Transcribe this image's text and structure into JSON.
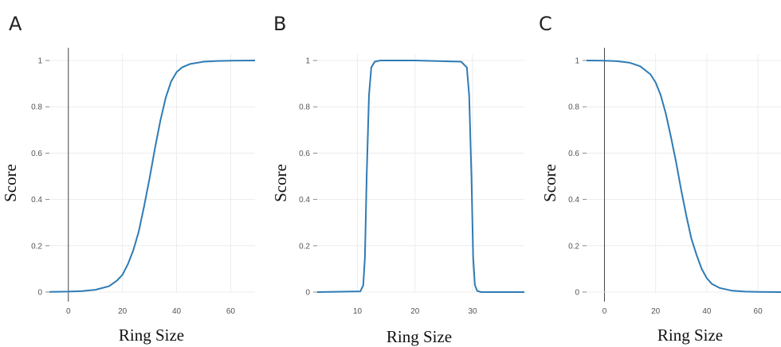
{
  "chart_data": [
    {
      "panel": "A",
      "type": "line",
      "xlabel": "Ring Size",
      "ylabel": "Score",
      "xlim": [
        -7,
        69
      ],
      "ylim": [
        0,
        1
      ],
      "xticks": [
        0,
        20,
        40,
        60
      ],
      "yticks": [
        0,
        0.2,
        0.4,
        0.6,
        0.8,
        1
      ],
      "ytick_labels": [
        "0",
        "0.2",
        "0.4",
        "0.6",
        "0.8",
        "1"
      ],
      "grid": true,
      "color": "#2f7bb5",
      "x": [
        -7,
        0,
        5,
        10,
        15,
        18,
        20,
        22,
        24,
        26,
        28,
        30,
        32,
        34,
        36,
        38,
        40,
        42,
        45,
        50,
        55,
        60,
        69
      ],
      "y": [
        0.001,
        0.002,
        0.004,
        0.01,
        0.025,
        0.05,
        0.075,
        0.12,
        0.18,
        0.26,
        0.37,
        0.49,
        0.62,
        0.74,
        0.84,
        0.91,
        0.95,
        0.97,
        0.985,
        0.995,
        0.998,
        0.999,
        1
      ]
    },
    {
      "panel": "B",
      "type": "line",
      "xlabel": "Ring Size",
      "ylabel": "Score",
      "xlim": [
        3,
        39
      ],
      "ylim": [
        0,
        1
      ],
      "xticks": [
        10,
        20,
        30
      ],
      "yticks": [
        0,
        0.2,
        0.4,
        0.6,
        0.8,
        1
      ],
      "ytick_labels": [
        "0",
        "0.2",
        "0.4",
        "0.6",
        "0.8",
        "1"
      ],
      "grid": true,
      "color": "#2f7bb5",
      "x": [
        3,
        10.5,
        11,
        11.3,
        11.6,
        12,
        12.4,
        13,
        14,
        20,
        28,
        29,
        29.4,
        29.8,
        30.1,
        30.4,
        30.8,
        31.5,
        39
      ],
      "y": [
        0,
        0.003,
        0.03,
        0.15,
        0.5,
        0.85,
        0.97,
        0.995,
        1,
        1,
        0.995,
        0.97,
        0.85,
        0.5,
        0.15,
        0.03,
        0.005,
        0,
        0
      ]
    },
    {
      "panel": "C",
      "type": "line",
      "xlabel": "Ring Size",
      "ylabel": "Score",
      "xlim": [
        -7,
        69
      ],
      "ylim": [
        0,
        1
      ],
      "xticks": [
        0,
        20,
        40,
        60
      ],
      "yticks": [
        0,
        0.2,
        0.4,
        0.6,
        0.8,
        1
      ],
      "ytick_labels": [
        "0",
        "0.2",
        "0.4",
        "0.6",
        "0.8",
        "1"
      ],
      "grid": true,
      "color": "#2f7bb5",
      "x": [
        -7,
        0,
        5,
        10,
        14,
        18,
        20,
        22,
        24,
        26,
        28,
        30,
        32,
        34,
        36,
        38,
        40,
        42,
        45,
        50,
        55,
        60,
        69
      ],
      "y": [
        1,
        0.999,
        0.997,
        0.99,
        0.975,
        0.94,
        0.905,
        0.85,
        0.77,
        0.67,
        0.56,
        0.44,
        0.33,
        0.23,
        0.16,
        0.1,
        0.06,
        0.035,
        0.018,
        0.006,
        0.002,
        0.001,
        0
      ]
    }
  ]
}
